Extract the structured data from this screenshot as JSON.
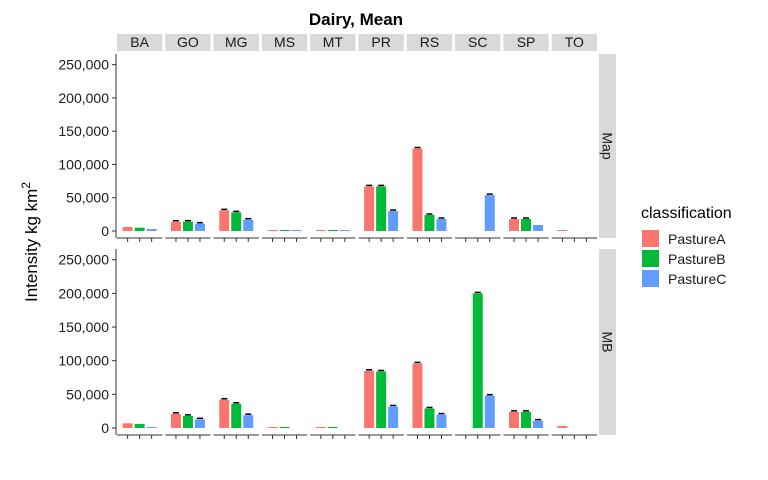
{
  "chart_data": {
    "type": "bar",
    "title": "Dairy, Mean",
    "ylabel": "Intensity kg km",
    "ylabel_superscript": "2",
    "ylim": [
      0,
      260000
    ],
    "yticks": [
      0,
      50000,
      100000,
      150000,
      200000,
      250000
    ],
    "ytick_labels": [
      "0",
      "50,000",
      "100,000",
      "150,000",
      "200,000",
      "250,000"
    ],
    "categories": [
      "BA",
      "GO",
      "MG",
      "MS",
      "MT",
      "PR",
      "RS",
      "SC",
      "SP",
      "TO"
    ],
    "panels": [
      "Map",
      "MB"
    ],
    "legend": {
      "title": "classification",
      "position": "right",
      "entries": [
        "PastureA",
        "PastureB",
        "PastureC"
      ]
    },
    "colors": {
      "PastureA": "#F8766D",
      "PastureB": "#00BA38",
      "PastureC": "#619CFF"
    },
    "grid": false,
    "series": [
      {
        "panel": "Map",
        "name": "PastureA",
        "values": [
          6000,
          14000,
          31000,
          1000,
          1000,
          67000,
          124000,
          0,
          18000,
          1500
        ]
      },
      {
        "panel": "Map",
        "name": "PastureB",
        "values": [
          5000,
          14000,
          28000,
          1000,
          1000,
          67000,
          24000,
          0,
          18000,
          0
        ]
      },
      {
        "panel": "Map",
        "name": "PastureC",
        "values": [
          3000,
          11000,
          17000,
          1000,
          1000,
          30000,
          18000,
          54000,
          9000,
          0
        ]
      },
      {
        "panel": "MB",
        "name": "PastureA",
        "values": [
          7000,
          21000,
          42000,
          1000,
          1000,
          85000,
          96000,
          0,
          24000,
          3000
        ]
      },
      {
        "panel": "MB",
        "name": "PastureB",
        "values": [
          6000,
          18000,
          36000,
          1000,
          1000,
          84000,
          29000,
          200000,
          24000,
          0
        ]
      },
      {
        "panel": "MB",
        "name": "PastureC",
        "values": [
          1000,
          13000,
          19000,
          0,
          0,
          32000,
          20000,
          48000,
          11000,
          0
        ]
      }
    ]
  }
}
